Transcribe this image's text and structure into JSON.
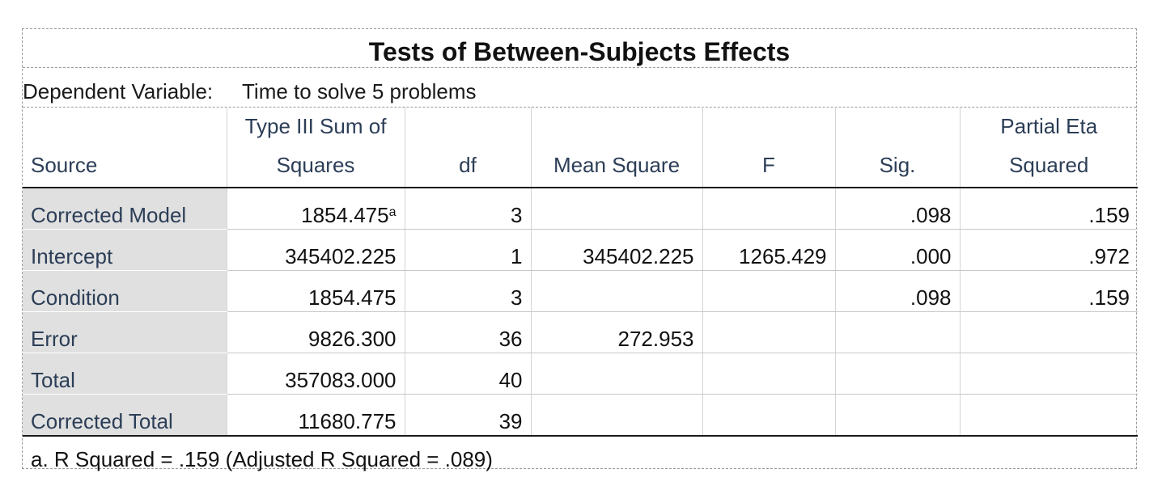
{
  "title": "Tests of Between-Subjects Effects",
  "dependent_variable": {
    "label": "Dependent Variable:",
    "value": "Time to solve 5 problems"
  },
  "columns": {
    "source": "Source",
    "ss_line1": "Type III Sum of",
    "ss_line2": "Squares",
    "df": "df",
    "ms": "Mean Square",
    "f": "F",
    "sig": "Sig.",
    "eta_line1": "Partial Eta",
    "eta_line2": "Squared"
  },
  "rows": [
    {
      "source": "Corrected Model",
      "ss": "1854.475",
      "ss_note": "a",
      "df": "3",
      "ms": "",
      "f": "",
      "sig": ".098",
      "eta": ".159"
    },
    {
      "source": "Intercept",
      "ss": "345402.225",
      "ss_note": "",
      "df": "1",
      "ms": "345402.225",
      "f": "1265.429",
      "sig": ".000",
      "eta": ".972"
    },
    {
      "source": "Condition",
      "ss": "1854.475",
      "ss_note": "",
      "df": "3",
      "ms": "",
      "f": "",
      "sig": ".098",
      "eta": ".159"
    },
    {
      "source": "Error",
      "ss": "9826.300",
      "ss_note": "",
      "df": "36",
      "ms": "272.953",
      "f": "",
      "sig": "",
      "eta": ""
    },
    {
      "source": "Total",
      "ss": "357083.000",
      "ss_note": "",
      "df": "40",
      "ms": "",
      "f": "",
      "sig": "",
      "eta": ""
    },
    {
      "source": "Corrected Total",
      "ss": "11680.775",
      "ss_note": "",
      "df": "39",
      "ms": "",
      "f": "",
      "sig": "",
      "eta": ""
    }
  ],
  "footnote": "a. R Squared = .159 (Adjusted R Squared = .089)"
}
